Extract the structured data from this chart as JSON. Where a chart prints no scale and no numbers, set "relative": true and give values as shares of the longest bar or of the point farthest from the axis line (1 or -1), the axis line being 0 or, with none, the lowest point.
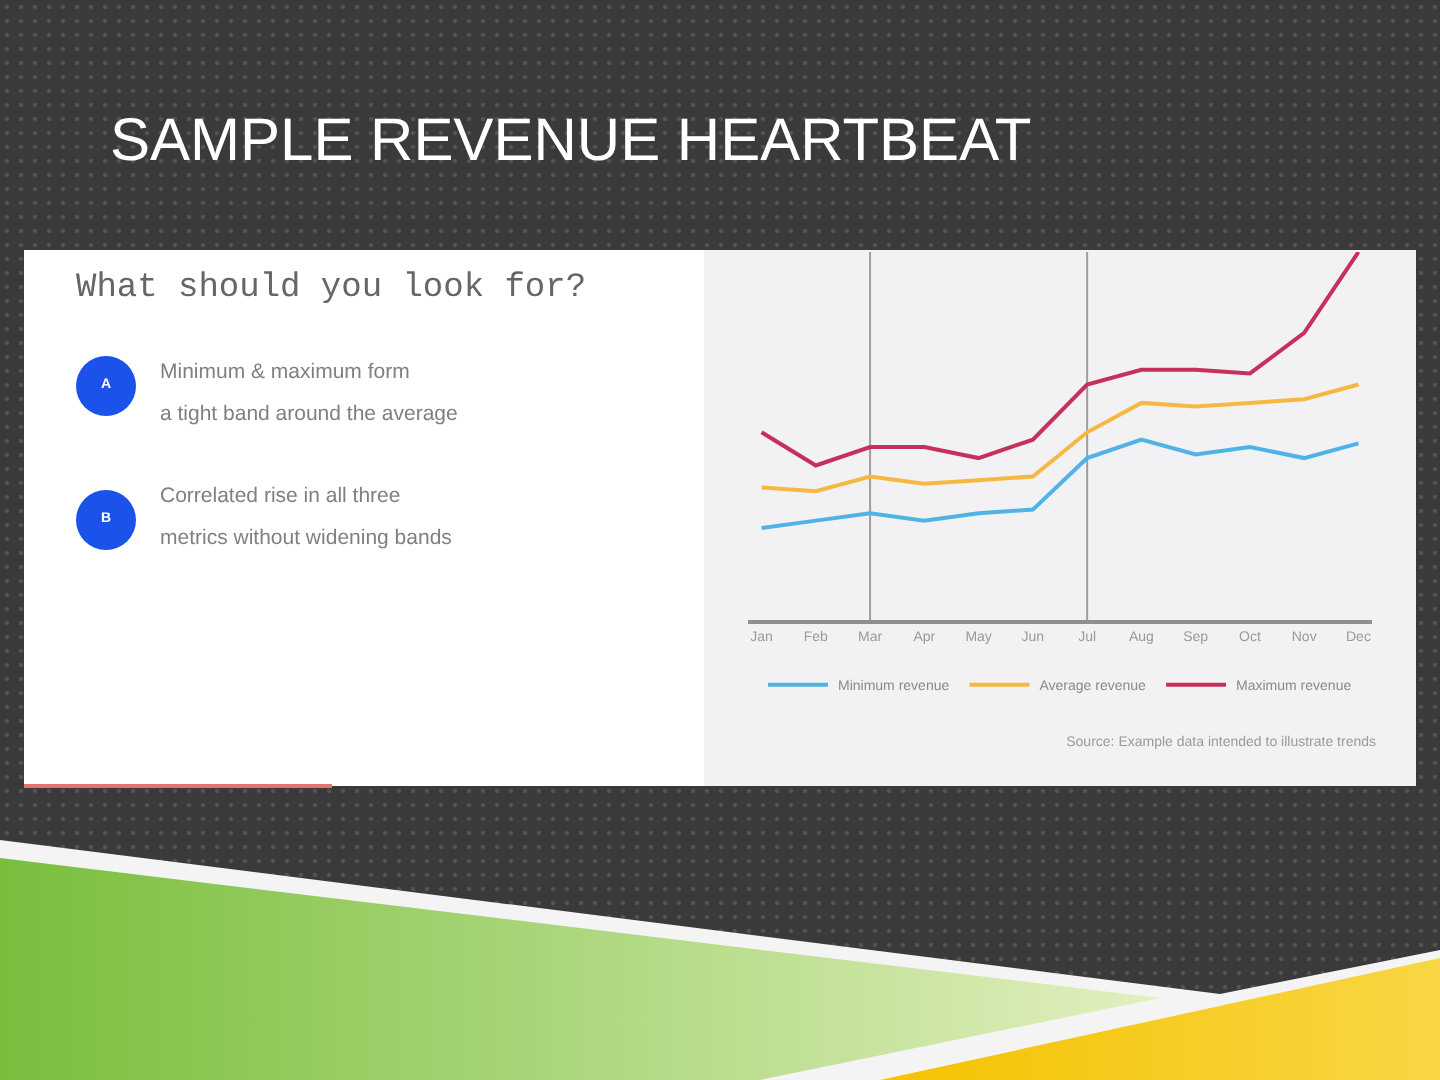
{
  "chart_data": {
    "type": "line",
    "title": "SAMPLE REVENUE HEARTBEAT",
    "categories": [
      "Jan",
      "Feb",
      "Mar",
      "Apr",
      "May",
      "Jun",
      "Jul",
      "Aug",
      "Sep",
      "Oct",
      "Nov",
      "Dec"
    ],
    "series": [
      {
        "name": "Minimum revenue",
        "color": "#4fb3e6",
        "values": [
          0.25,
          0.27,
          0.29,
          0.27,
          0.29,
          0.3,
          0.44,
          0.49,
          0.45,
          0.47,
          0.44,
          0.48
        ]
      },
      {
        "name": "Average revenue",
        "color": "#f5b942",
        "values": [
          0.36,
          0.35,
          0.39,
          0.37,
          0.38,
          0.39,
          0.51,
          0.59,
          0.58,
          0.59,
          0.6,
          0.64
        ]
      },
      {
        "name": "Maximum revenue",
        "color": "#c8305c",
        "values": [
          0.51,
          0.42,
          0.47,
          0.47,
          0.44,
          0.49,
          0.64,
          0.68,
          0.68,
          0.67,
          0.78,
          1
        ]
      }
    ],
    "relative": true,
    "legend": "bottom",
    "marker": "none",
    "line_style": "solid",
    "ref_lines": [
      {
        "axis": "x",
        "value": "Mar",
        "color": "#9e9e9e"
      },
      {
        "axis": "x",
        "value": "Jul",
        "color": "#9e9e9e"
      }
    ],
    "annotations": [
      "What should you look for?",
      "A",
      "Minimum & maximum form\na tight band around the average",
      "B",
      "Correlated rise in all three\nmetrics without widening bands",
      "Source: Example data intended to illustrate trends"
    ]
  }
}
